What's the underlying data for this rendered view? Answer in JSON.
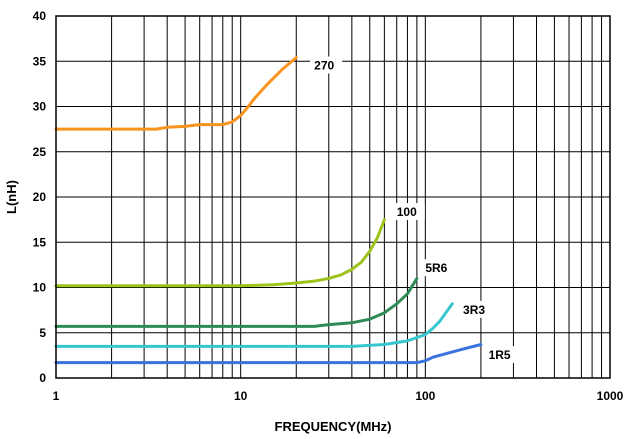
{
  "chart_data": {
    "type": "line",
    "title": "",
    "xlabel": "FREQUENCY(MHz)",
    "ylabel": "L(nH)",
    "xscale": "log",
    "xlim": [
      1,
      1000
    ],
    "ylim": [
      0,
      40
    ],
    "x_ticks": [
      1,
      10,
      100,
      1000
    ],
    "x_tick_labels": [
      "1",
      "10",
      "100",
      "1000"
    ],
    "y_ticks": [
      0,
      5,
      10,
      15,
      20,
      25,
      30,
      35,
      40
    ],
    "y_tick_labels": [
      "0",
      "5",
      "10",
      "15",
      "20",
      "25",
      "30",
      "35",
      "40"
    ],
    "grid": true,
    "legend": "none",
    "series": [
      {
        "name": "270",
        "color": "#F7941D",
        "x": [
          1,
          2,
          3.5,
          4,
          5,
          6,
          8,
          9,
          10,
          11,
          12,
          14,
          17,
          20
        ],
        "y": [
          27.5,
          27.5,
          27.5,
          27.7,
          27.8,
          28,
          28,
          28.3,
          29,
          30,
          31,
          32.5,
          34.2,
          35.4
        ]
      },
      {
        "name": "100",
        "color": "#9DC41A",
        "x": [
          1,
          5,
          10,
          15,
          20,
          25,
          30,
          35,
          40,
          45,
          50,
          55,
          60
        ],
        "y": [
          10.2,
          10.2,
          10.2,
          10.3,
          10.5,
          10.7,
          11,
          11.4,
          12,
          12.8,
          14,
          15.5,
          17.5
        ]
      },
      {
        "name": "5R6",
        "color": "#2E8B57",
        "x": [
          1,
          10,
          25,
          30,
          40,
          50,
          60,
          70,
          80,
          90
        ],
        "y": [
          5.7,
          5.7,
          5.7,
          5.9,
          6.1,
          6.5,
          7.2,
          8.2,
          9.3,
          11
        ]
      },
      {
        "name": "3R3",
        "color": "#37C6D0",
        "x": [
          1,
          10,
          40,
          60,
          80,
          100,
          110,
          120,
          130,
          140
        ],
        "y": [
          3.5,
          3.5,
          3.5,
          3.7,
          4.1,
          4.8,
          5.5,
          6.3,
          7.3,
          8.2
        ]
      },
      {
        "name": "1R5",
        "color": "#3A72E0",
        "x": [
          1,
          10,
          90,
          100,
          110,
          130,
          160,
          200
        ],
        "y": [
          1.7,
          1.7,
          1.7,
          1.9,
          2.3,
          2.7,
          3.2,
          3.7
        ]
      }
    ],
    "annotations": [
      {
        "text": "270",
        "x": 25,
        "y": 34.2
      },
      {
        "text": "100",
        "x": 70,
        "y": 18
      },
      {
        "text": "5R6",
        "x": 100,
        "y": 11.8
      },
      {
        "text": "3R3",
        "x": 160,
        "y": 7.2
      },
      {
        "text": "1R5",
        "x": 220,
        "y": 2.2
      }
    ]
  }
}
